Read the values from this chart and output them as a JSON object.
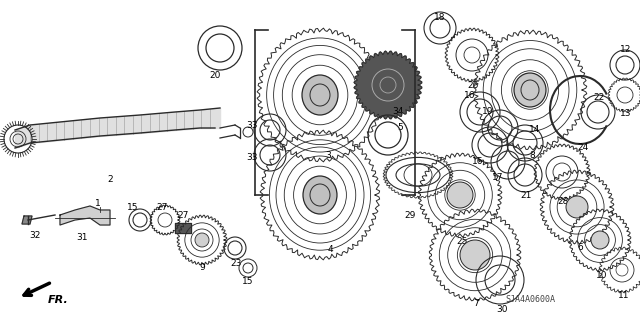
{
  "background_color": "#ffffff",
  "diagram_code": "SJA4A0600A",
  "fr_label": "FR.",
  "line_color": "#2a2a2a",
  "gear_color": "#2a2a2a",
  "label_fontsize": 6.5
}
